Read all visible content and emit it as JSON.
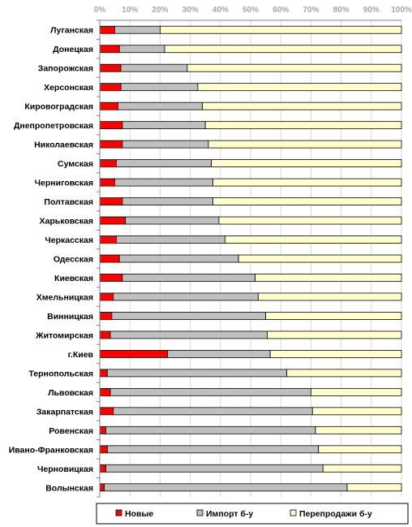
{
  "chart_data": {
    "type": "bar",
    "orientation": "horizontal",
    "stacked": "percent",
    "xlim": [
      0,
      100
    ],
    "x_ticks": [
      "0%",
      "10%",
      "20%",
      "30%",
      "40%",
      "50%",
      "60%",
      "70%",
      "80%",
      "90%",
      "100%"
    ],
    "legend_position": "bottom",
    "categories": [
      "Луганская",
      "Донецкая",
      "Запорожская",
      "Херсонская",
      "Кировоградская",
      "Днепропетровская",
      "Николаевская",
      "Сумская",
      "Черниговская",
      "Полтавская",
      "Харьковская",
      "Черкасская",
      "Одесская",
      "Киевская",
      "Хмельницкая",
      "Винницкая",
      "Житомирская",
      "г.Киев",
      "Тернопольская",
      "Львовская",
      "Закарпатская",
      "Ровенская",
      "Ивано-Франковская",
      "Черновицкая",
      "Волынская"
    ],
    "series": [
      {
        "name": "Новые",
        "color": "#ff0000",
        "values": [
          5,
          6.5,
          7,
          7,
          6,
          7.5,
          7.5,
          5.5,
          5,
          7.5,
          8.5,
          5.5,
          6.5,
          7.5,
          4.5,
          4,
          3.5,
          22.5,
          2.5,
          3.5,
          4.5,
          2,
          2.5,
          2,
          1.5
        ]
      },
      {
        "name": "Импорт б-у",
        "color": "#bfbfbf",
        "values": [
          15,
          15,
          22,
          25.5,
          28,
          27.5,
          28.5,
          31.5,
          32.5,
          30,
          31,
          36,
          39.5,
          44,
          48,
          51,
          52,
          34,
          59.5,
          66.5,
          66,
          69.5,
          70,
          72,
          80.5
        ]
      },
      {
        "name": "Перепродажи б-у",
        "color": "#ffffcc",
        "values": [
          80,
          78.5,
          71,
          67.5,
          66,
          65,
          64,
          63,
          62.5,
          62.5,
          60.5,
          58.5,
          54,
          48.5,
          47.5,
          45,
          44.5,
          43.5,
          38,
          30,
          29.5,
          28.5,
          27.5,
          26,
          18
        ]
      }
    ]
  }
}
